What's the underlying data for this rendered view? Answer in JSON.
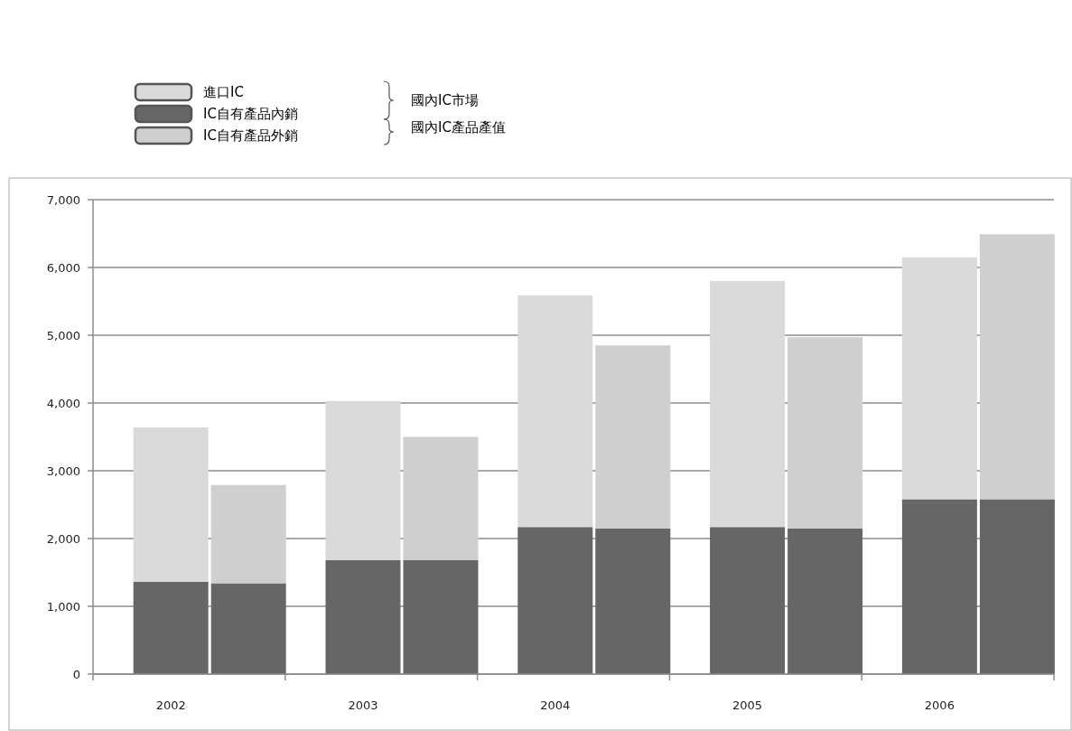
{
  "chart_data": {
    "type": "bar",
    "stacked": true,
    "categories": [
      "2002",
      null,
      "2003",
      null,
      "2004",
      null,
      "2005",
      null,
      "2006",
      null
    ],
    "series": [
      {
        "name": "IC自有產品內銷",
        "color": "#666666",
        "values": [
          1360,
          1340,
          1680,
          1680,
          2170,
          2150,
          2170,
          2150,
          2580,
          2580
        ]
      },
      {
        "name": "進口IC",
        "color": "#dadada",
        "values": [
          2280,
          null,
          2350,
          null,
          3420,
          null,
          3630,
          null,
          3570,
          null
        ]
      },
      {
        "name": "IC自有產品外銷",
        "color": "#cfcfcf",
        "values": [
          null,
          1450,
          null,
          1820,
          null,
          2700,
          null,
          2820,
          null,
          3910
        ]
      }
    ],
    "ylim": [
      0,
      7000
    ],
    "yticks": [
      {
        "value": 0,
        "label": "0"
      },
      {
        "value": 1000,
        "label": "1,000"
      },
      {
        "value": 2000,
        "label": "2,000"
      },
      {
        "value": 3000,
        "label": "3,000"
      },
      {
        "value": 4000,
        "label": "4,000"
      },
      {
        "value": 5000,
        "label": "5,000"
      },
      {
        "value": 6000,
        "label": "6,000"
      },
      {
        "value": 7000,
        "label": "7,000"
      }
    ],
    "grid": "y",
    "legend": "top left",
    "annotations": [
      "國內IC市場",
      "國內IC產品產值"
    ]
  }
}
